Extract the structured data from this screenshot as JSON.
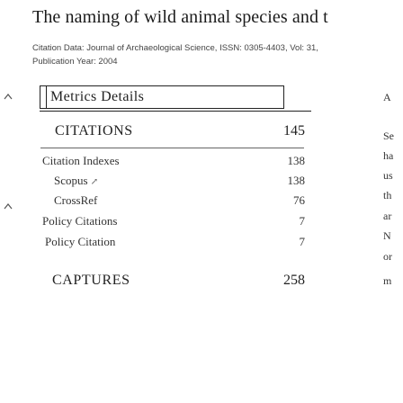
{
  "page": {
    "title": "The naming of wild animal species and t",
    "citation_line1": "Citation Data: Journal of Archaeological Science, ISSN: 0305-4403, Vol: 31,",
    "citation_line2": "Publication Year: 2004"
  },
  "metrics": {
    "box_title": "Metrics Details",
    "citations": {
      "label": "CITATIONS",
      "value": "145",
      "rows": [
        {
          "label": "Citation Indexes",
          "value": "138",
          "level": 1
        },
        {
          "label": "Scopus",
          "value": "138",
          "level": 2,
          "external": true
        },
        {
          "label": "CrossRef",
          "value": "76",
          "level": 2
        },
        {
          "label": "Policy Citations",
          "value": "7",
          "level": 1
        },
        {
          "label": "Policy Citation",
          "value": "7",
          "level": 2
        }
      ]
    },
    "captures": {
      "label": "CAPTURES",
      "value": "258"
    }
  },
  "side_panel": {
    "letters": [
      "A",
      "Se",
      "ha",
      "us",
      "th",
      "ar",
      "N",
      "or",
      "m"
    ]
  },
  "icons": {
    "left_chevrons": [
      "chevron-up-icon",
      "chevron-up-icon"
    ],
    "external_link": "arrow-up-right-icon"
  }
}
